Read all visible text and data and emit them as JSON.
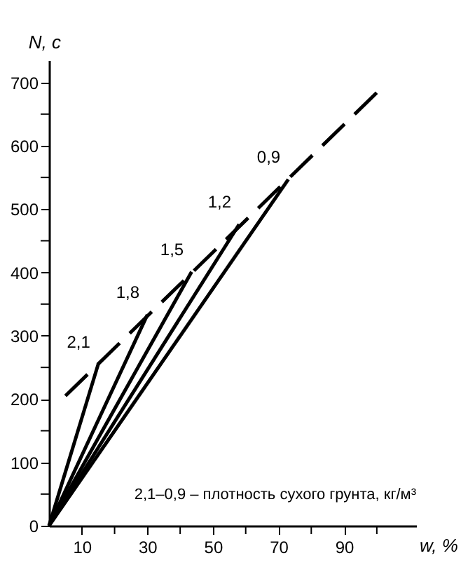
{
  "chart_data": {
    "type": "line",
    "xlabel": "w, %",
    "ylabel": "N, с",
    "xlim": [
      0,
      112
    ],
    "ylim": [
      0,
      735
    ],
    "xticks": [
      {
        "value": 10,
        "label": "10"
      },
      {
        "value": 20,
        "label": null
      },
      {
        "value": 30,
        "label": "30"
      },
      {
        "value": 40,
        "label": null
      },
      {
        "value": 50,
        "label": "50"
      },
      {
        "value": 60,
        "label": null
      },
      {
        "value": 70,
        "label": "70"
      },
      {
        "value": 80,
        "label": null
      },
      {
        "value": 90,
        "label": "90"
      },
      {
        "value": 100,
        "label": null
      }
    ],
    "yticks": [
      0,
      {
        "value": 50,
        "label": null
      },
      100,
      {
        "value": 150,
        "label": null
      },
      200,
      {
        "value": 250,
        "label": null
      },
      300,
      {
        "value": 350,
        "label": null
      },
      400,
      {
        "value": 450,
        "label": null
      },
      500,
      {
        "value": 550,
        "label": null
      },
      600,
      {
        "value": 650,
        "label": null
      },
      700
    ],
    "grid": false,
    "legend": false,
    "marker": "none",
    "series": [
      {
        "name": "2,1",
        "color": "#000000",
        "x": [
          0,
          15
        ],
        "values": [
          0,
          255
        ]
      },
      {
        "name": "1,8",
        "color": "#000000",
        "x": [
          0,
          30
        ],
        "values": [
          0,
          333
        ]
      },
      {
        "name": "1,5",
        "color": "#000000",
        "x": [
          0,
          43.5
        ],
        "values": [
          0,
          401
        ]
      },
      {
        "name": "1,2",
        "color": "#000000",
        "x": [
          0,
          58
        ],
        "values": [
          0,
          476
        ]
      },
      {
        "name": "0,9",
        "color": "#000000",
        "x": [
          0,
          73
        ],
        "values": [
          0,
          547
        ]
      },
      {
        "color": "#000000",
        "line_style": "dashed",
        "x": [
          5,
          101
        ],
        "values": [
          205,
          689
        ]
      }
    ],
    "annotations": [
      "2,1–0,9 – плотность сухого грунта, кг/м³"
    ]
  }
}
